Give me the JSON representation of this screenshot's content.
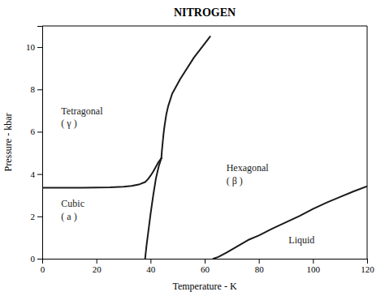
{
  "chart_data": {
    "type": "line",
    "title": "NITROGEN",
    "xlabel": "Temperature - K",
    "ylabel": "Pressure - kbar",
    "xlim": [
      0,
      120
    ],
    "ylim": [
      0,
      11
    ],
    "xticks": [
      0,
      20,
      40,
      60,
      80,
      100,
      120
    ],
    "yticks": [
      0,
      2,
      4,
      6,
      8,
      10
    ],
    "grid": false,
    "series": [
      {
        "color": "#1a1a1a",
        "x": [
          0,
          5,
          10,
          15,
          20,
          25,
          30,
          33,
          36,
          38,
          39,
          40,
          41,
          42,
          43,
          44
        ],
        "values": [
          3.35,
          3.35,
          3.35,
          3.35,
          3.36,
          3.37,
          3.4,
          3.44,
          3.52,
          3.62,
          3.75,
          3.92,
          4.12,
          4.35,
          4.58,
          4.75
        ]
      },
      {
        "color": "#1a1a1a",
        "x": [
          44,
          44.2,
          44.5,
          44.8,
          45.2,
          45.8,
          46.5,
          48,
          51,
          56,
          62
        ],
        "values": [
          4.75,
          5.1,
          5.5,
          5.9,
          6.3,
          6.8,
          7.2,
          7.8,
          8.5,
          9.5,
          10.5
        ]
      },
      {
        "color": "#1a1a1a",
        "x": [
          38.0,
          38.5,
          39.2,
          40.0,
          41.0,
          42.0,
          43.0,
          44.0
        ],
        "values": [
          0.0,
          0.6,
          1.3,
          2.1,
          3.0,
          3.8,
          4.35,
          4.75
        ]
      },
      {
        "color": "#1a1a1a",
        "x": [
          63.2,
          65,
          68,
          72,
          76,
          80,
          85,
          90,
          95,
          100,
          105,
          110,
          115,
          120
        ],
        "values": [
          0.0,
          0.08,
          0.28,
          0.58,
          0.88,
          1.1,
          1.42,
          1.72,
          2.02,
          2.35,
          2.65,
          2.92,
          3.18,
          3.42
        ]
      }
    ],
    "annotations": [
      {
        "text": "Tetragonal",
        "x": 7,
        "y": 7.0
      },
      {
        "text": "( γ )",
        "x": 7,
        "y": 6.4
      },
      {
        "text": "Cubic",
        "x": 7,
        "y": 2.6
      },
      {
        "text": "( a )",
        "x": 7,
        "y": 2.0
      },
      {
        "text": "Hexagonal",
        "x": 68,
        "y": 4.3
      },
      {
        "text": "( β )",
        "x": 68,
        "y": 3.7
      },
      {
        "text": "Liquid",
        "x": 91,
        "y": 0.9
      }
    ]
  }
}
